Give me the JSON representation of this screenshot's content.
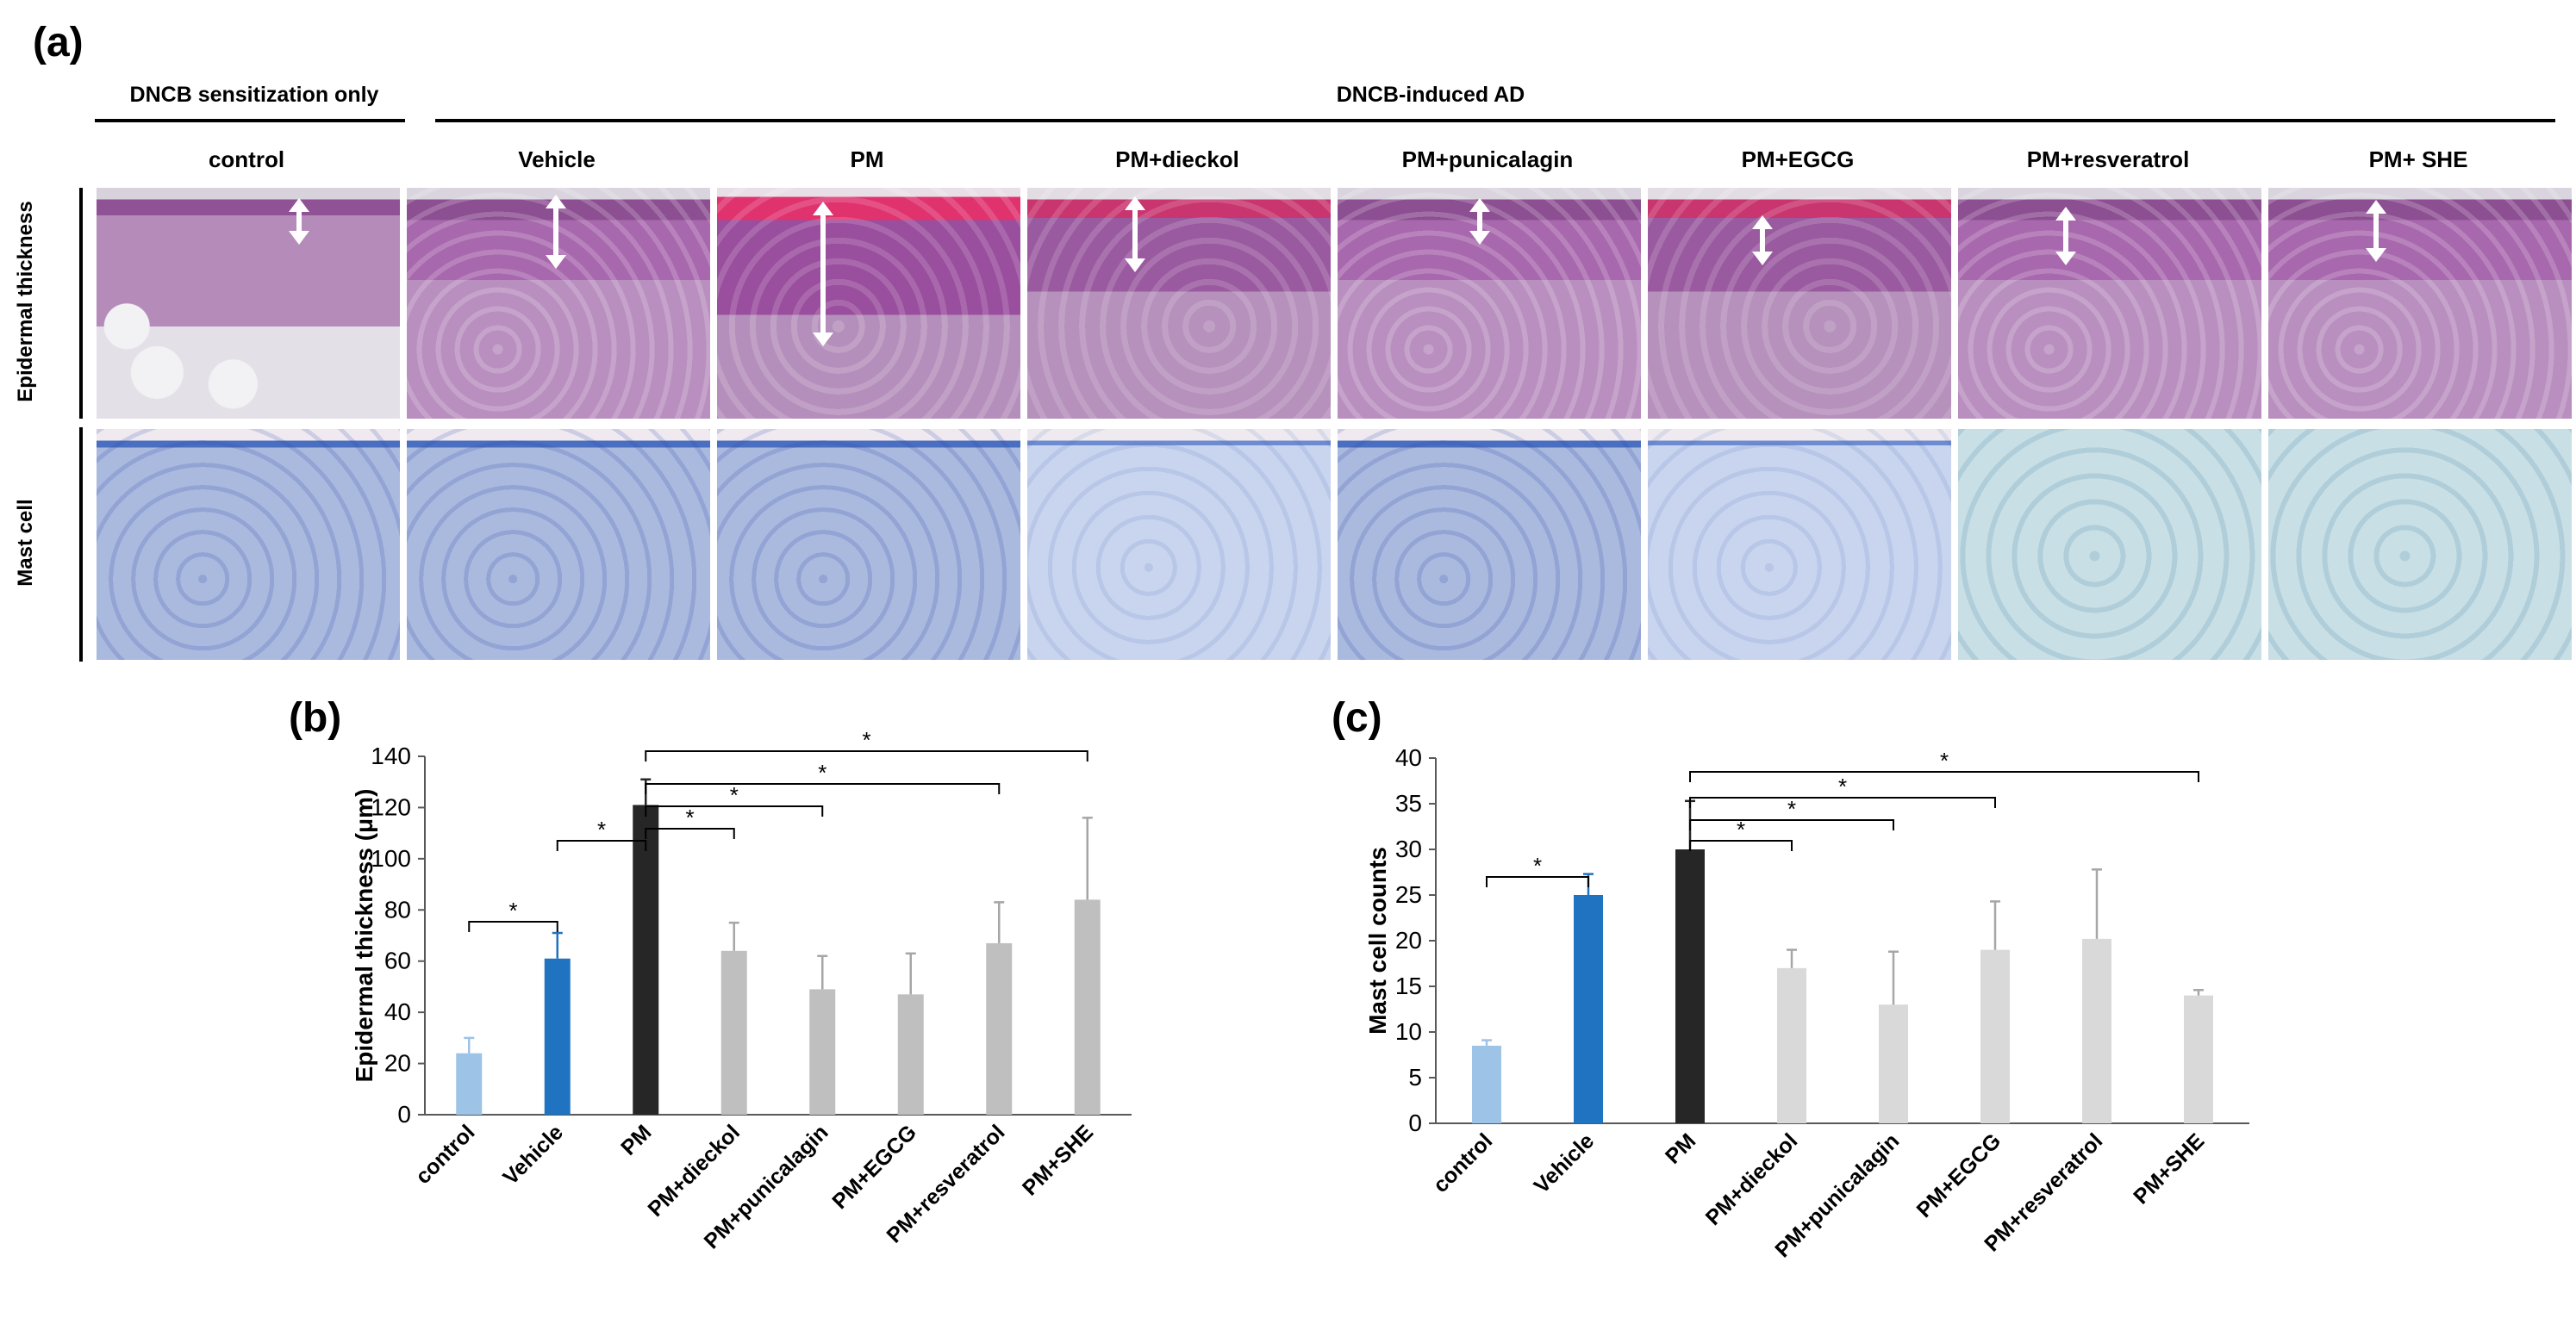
{
  "panel_a": {
    "label": "(a)",
    "group_left": "DNCB  sensitization only",
    "group_right": "DNCB-induced  AD",
    "columns": [
      "control",
      "Vehicle",
      "PM",
      "PM+dieckol",
      "PM+punicalagin",
      "PM+EGCG",
      "PM+resveratrol",
      "PM+ SHE"
    ],
    "rows": [
      "Epidermal thickness",
      "Mast cell"
    ]
  },
  "chart_data": [
    {
      "type": "bar",
      "label": "(b)",
      "categories": [
        "control",
        "Vehicle",
        "PM",
        "PM+dieckol",
        "PM+punicalagin",
        "PM+EGCG",
        "PM+resveratrol",
        "PM+SHE"
      ],
      "values": [
        24,
        61,
        121,
        64,
        49,
        47,
        67,
        84
      ],
      "errors": [
        6,
        10,
        10,
        11,
        13,
        16,
        16,
        32
      ],
      "colors": [
        "#9dc3e6",
        "#1f73c0",
        "#262626",
        "#bfbfbf",
        "#bfbfbf",
        "#bfbfbf",
        "#bfbfbf",
        "#bfbfbf"
      ],
      "ylabel": "Epidermal thickness (μm)",
      "ylim": [
        0,
        140
      ],
      "yticks": [
        0,
        20,
        40,
        60,
        80,
        100,
        120,
        140
      ],
      "significance": [
        {
          "from": 0,
          "to": 1,
          "label": "*"
        },
        {
          "from": 1,
          "to": 2,
          "label": "*"
        },
        {
          "from": 2,
          "to": 3,
          "label": "*"
        },
        {
          "from": 2,
          "to": 4,
          "label": "*"
        },
        {
          "from": 2,
          "to": 6,
          "label": "*"
        },
        {
          "from": 2,
          "to": 7,
          "label": "*"
        }
      ]
    },
    {
      "type": "bar",
      "label": "(c)",
      "categories": [
        "control",
        "Vehicle",
        "PM",
        "PM+dieckol",
        "PM+punicalagin",
        "PM+EGCG",
        "PM+resveratrol",
        "PM+SHE"
      ],
      "values": [
        8.5,
        25,
        30,
        17,
        13,
        19,
        20.2,
        14
      ],
      "errors": [
        0.6,
        2.3,
        5.3,
        2,
        5.8,
        5.3,
        7.6,
        0.6
      ],
      "colors": [
        "#9dc3e6",
        "#1f73c0",
        "#262626",
        "#d9d9d9",
        "#d9d9d9",
        "#d9d9d9",
        "#d9d9d9",
        "#d9d9d9"
      ],
      "ylabel": "Mast cell counts",
      "ylim": [
        0,
        40
      ],
      "yticks": [
        0,
        5,
        10,
        15,
        20,
        25,
        30,
        35,
        40
      ],
      "significance": [
        {
          "from": 0,
          "to": 1,
          "label": "*"
        },
        {
          "from": 2,
          "to": 3,
          "label": "*"
        },
        {
          "from": 2,
          "to": 4,
          "label": "*"
        },
        {
          "from": 2,
          "to": 5,
          "label": "*"
        },
        {
          "from": 2,
          "to": 7,
          "label": "*"
        }
      ]
    }
  ]
}
